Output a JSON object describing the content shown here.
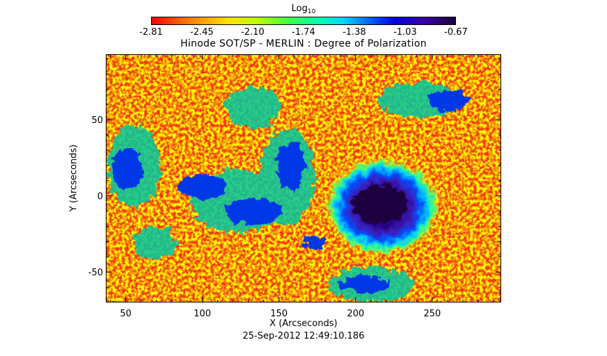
{
  "colorbar": {
    "title": "Log",
    "title_sub": "10",
    "ticks": [
      "-2.81",
      "-2.45",
      "-2.10",
      "-1.74",
      "-1.38",
      "-1.03",
      "-0.67"
    ]
  },
  "chart_data": {
    "type": "heatmap",
    "title": "Hinode SOT/SP - MERLIN : Degree of Polarization",
    "xlabel": "X (Arcseconds)",
    "ylabel": "Y (Arcseconds)",
    "xlim": [
      37,
      295
    ],
    "ylim": [
      -70,
      93
    ],
    "xticks": [
      50,
      100,
      150,
      200,
      250
    ],
    "yticks": [
      -50,
      0,
      50
    ],
    "value_range": [
      -2.81,
      -0.67
    ],
    "colormap": "rainbow (red low → violet high)",
    "features": [
      {
        "label": "sunspot",
        "x": 213,
        "y": -5,
        "value": -0.67
      }
    ]
  },
  "footer": {
    "timestamp": "25-Sep-2012 12:49:10.186"
  }
}
